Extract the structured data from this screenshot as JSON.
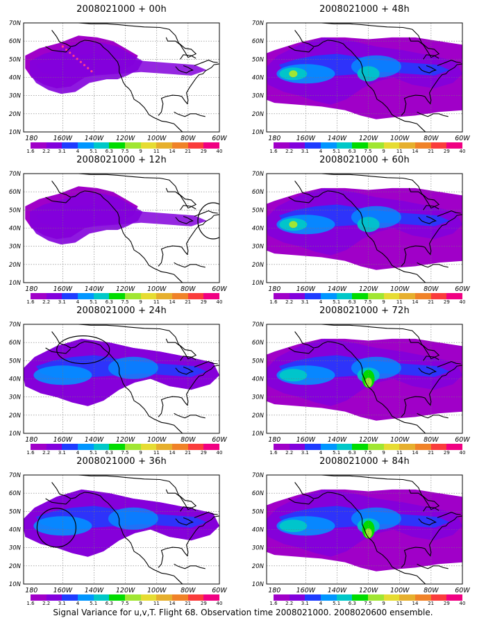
{
  "panels": [
    {
      "title": "2008021000 + 00h",
      "col": 0,
      "row": 0,
      "intensity": 0.35,
      "circle": null,
      "dots": true
    },
    {
      "title": "2008021000 + 48h",
      "col": 1,
      "row": 0,
      "intensity": 0.75,
      "circle": null,
      "dots": false
    },
    {
      "title": "2008021000 + 12h",
      "col": 0,
      "row": 1,
      "intensity": 0.45,
      "circle": "east",
      "dots": false
    },
    {
      "title": "2008021000 + 60h",
      "col": 1,
      "row": 1,
      "intensity": 0.82,
      "circle": null,
      "dots": false
    },
    {
      "title": "2008021000 + 24h",
      "col": 0,
      "row": 2,
      "intensity": 0.55,
      "circle": "northwest",
      "dots": false
    },
    {
      "title": "2008021000 + 72h",
      "col": 1,
      "row": 2,
      "intensity": 0.9,
      "circle": null,
      "dots": false
    },
    {
      "title": "2008021000 + 36h",
      "col": 0,
      "row": 3,
      "intensity": 0.62,
      "circle": "pacific",
      "dots": false
    },
    {
      "title": "2008021000 + 84h",
      "col": 1,
      "row": 3,
      "intensity": 0.95,
      "circle": null,
      "dots": false
    }
  ],
  "lat_labels": [
    "70N",
    "60N",
    "50N",
    "40N",
    "30N",
    "20N",
    "10N"
  ],
  "lon_labels": [
    "180",
    "160W",
    "140W",
    "120W",
    "100W",
    "80W",
    "60W"
  ],
  "legend": {
    "colors": [
      "#a000c8",
      "#8200dc",
      "#1e3cff",
      "#0096ff",
      "#00c8c8",
      "#00dc00",
      "#a0e632",
      "#e6dc32",
      "#e6af2d",
      "#f08228",
      "#fa3c3c",
      "#f00082"
    ],
    "labels": [
      "1.6",
      "2.2",
      "3.1",
      "4",
      "5.1",
      "6.3",
      "7.5",
      "9",
      "11",
      "14",
      "21",
      "29",
      "40"
    ]
  },
  "caption": "Signal Variance for u,v,T. Flight 68. Observation time 2008021000. 2008020600 ensemble."
}
